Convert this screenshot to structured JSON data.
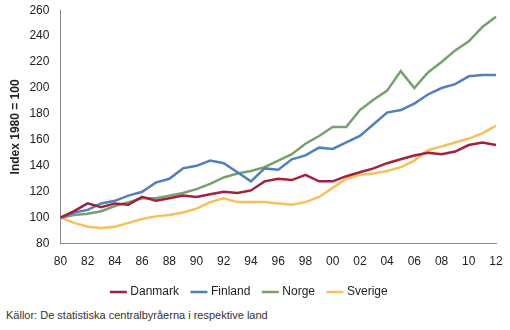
{
  "chart_data": {
    "type": "line",
    "y_label": "Index 1980 = 100",
    "annotations": [
      "Källor: De statistiska centralbyråerna i respektive land"
    ],
    "categories": [
      "80",
      null,
      "82",
      null,
      "84",
      null,
      "86",
      null,
      "88",
      null,
      "90",
      null,
      "92",
      null,
      "94",
      null,
      "96",
      null,
      "98",
      null,
      "00",
      null,
      "02",
      null,
      "04",
      null,
      "06",
      null,
      "08",
      null,
      "10",
      null,
      "12"
    ],
    "series": [
      {
        "name": "Danmark",
        "color": "#a3203f",
        "values": [
          100,
          105,
          111,
          108,
          111,
          110,
          116,
          113,
          115,
          117,
          116,
          118,
          120,
          119,
          121,
          128,
          130,
          129,
          133,
          128,
          128,
          132,
          135,
          138,
          142,
          145,
          148,
          150,
          149,
          151,
          156,
          158,
          156
        ]
      },
      {
        "name": "Finland",
        "color": "#4f81bd",
        "values": [
          100,
          104,
          106,
          111,
          113,
          117,
          120,
          127,
          130,
          138,
          140,
          144,
          142,
          135,
          128,
          138,
          137,
          145,
          148,
          154,
          153,
          158,
          163,
          172,
          181,
          183,
          188,
          195,
          200,
          203,
          209,
          210,
          210
        ]
      },
      {
        "name": "Norge",
        "color": "#77a06f",
        "values": [
          100,
          102,
          103,
          105,
          109,
          112,
          115,
          115,
          117,
          119,
          122,
          126,
          131,
          134,
          136,
          139,
          144,
          149,
          157,
          163,
          170,
          170,
          183,
          191,
          198,
          213,
          200,
          212,
          220,
          229,
          236,
          247,
          255
        ]
      },
      {
        "name": "Sverige",
        "color": "#f6c05a",
        "values": [
          100,
          96,
          93,
          92,
          93,
          96,
          99,
          101,
          102,
          104,
          107,
          112,
          115,
          112,
          112,
          112,
          111,
          110,
          112,
          116,
          123,
          130,
          133,
          134,
          136,
          139,
          144,
          152,
          155,
          158,
          161,
          165,
          171
        ]
      }
    ],
    "ylim": [
      80,
      260
    ],
    "yticks": [
      80,
      100,
      120,
      140,
      160,
      180,
      200,
      220,
      240,
      260
    ],
    "grid": false,
    "legend": "bottom"
  }
}
